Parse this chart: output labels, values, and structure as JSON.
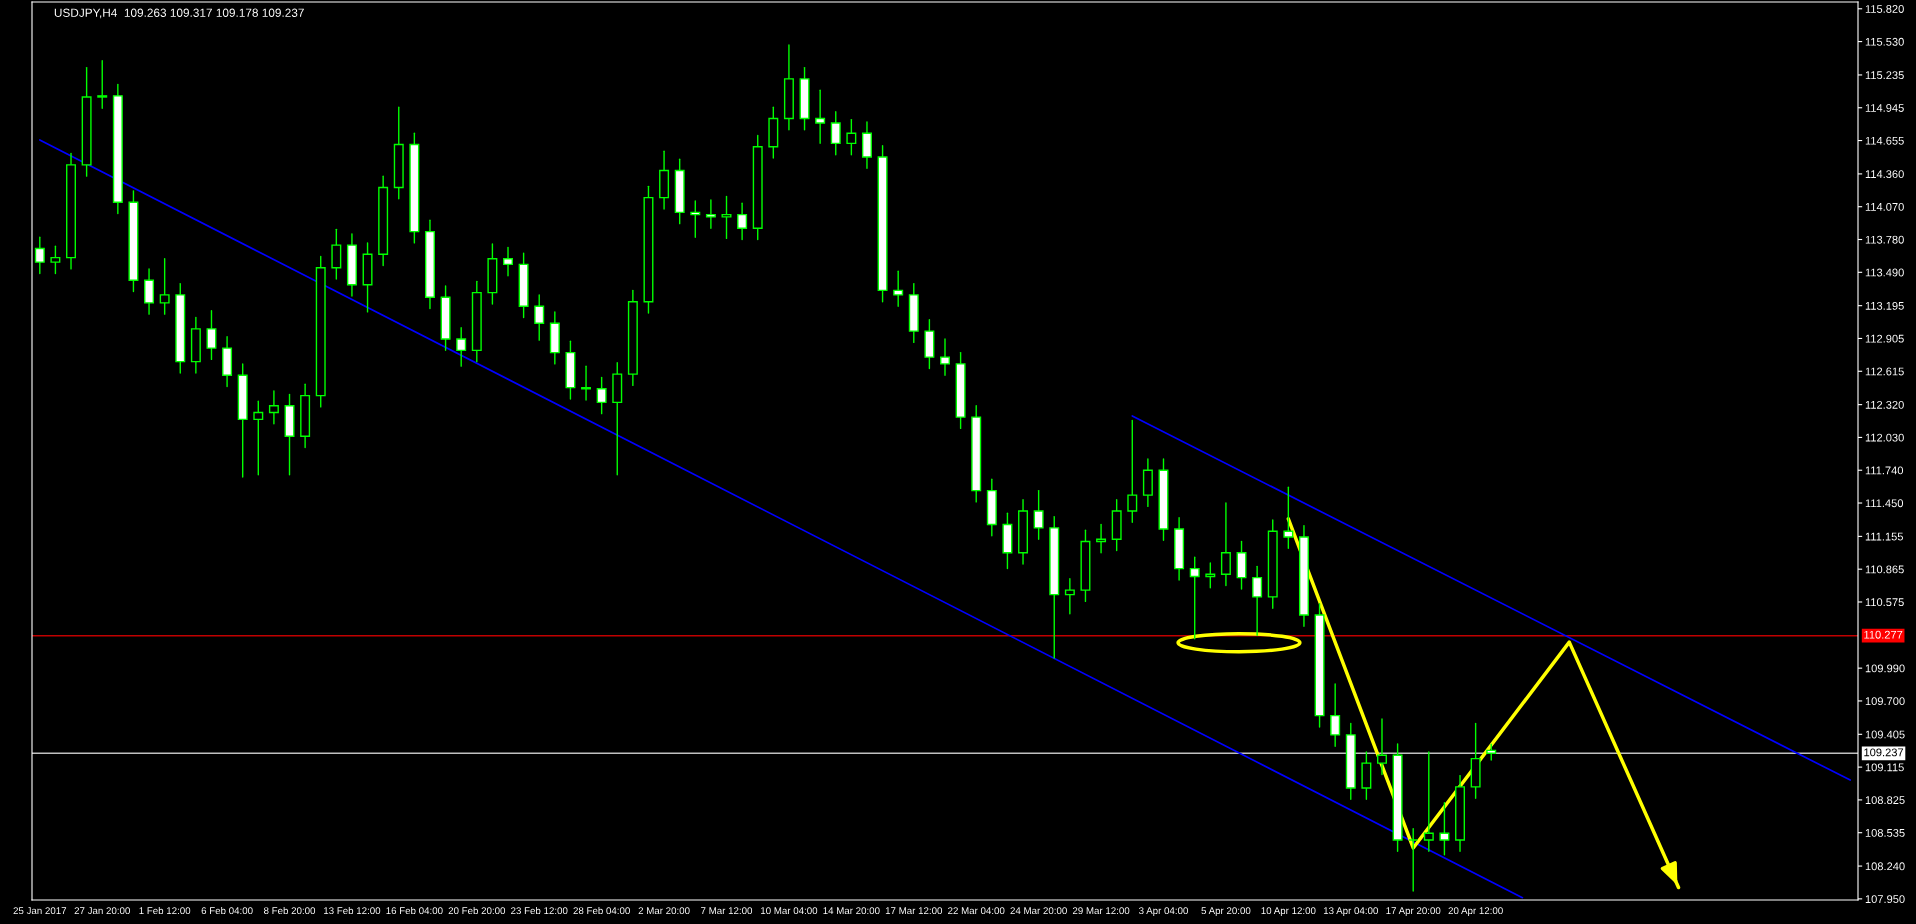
{
  "chart_data": {
    "type": "candlestick",
    "title": "USDJPY,H4  109.263 109.317 109.178 109.237",
    "color": "#00ff00",
    "categories": [
      "25 Jan 2017",
      null,
      null,
      null,
      "27 Jan 20:00",
      null,
      null,
      null,
      "1 Feb 12:00",
      null,
      null,
      null,
      "6 Feb 04:00",
      null,
      null,
      null,
      "8 Feb 20:00",
      null,
      null,
      null,
      "13 Feb 12:00",
      null,
      null,
      null,
      "16 Feb 04:00",
      null,
      null,
      null,
      "20 Feb 20:00",
      null,
      null,
      null,
      "23 Feb 12:00",
      null,
      null,
      null,
      "28 Feb 04:00",
      null,
      null,
      null,
      "2 Mar 20:00",
      null,
      null,
      null,
      "7 Mar 12:00",
      null,
      null,
      null,
      "10 Mar 04:00",
      null,
      null,
      null,
      "14 Mar 20:00",
      null,
      null,
      null,
      "17 Mar 12:00",
      null,
      null,
      null,
      "22 Mar 04:00",
      null,
      null,
      null,
      "24 Mar 20:00",
      null,
      null,
      null,
      "29 Mar 12:00",
      null,
      null,
      null,
      "3 Apr 04:00",
      null,
      null,
      null,
      "5 Apr 20:00",
      null,
      null,
      null,
      "10 Apr 12:00",
      null,
      null,
      null,
      "13 Apr 04:00",
      null,
      null,
      null,
      "17 Apr 20:00",
      null,
      null,
      null,
      "20 Apr 12:00",
      null,
      null,
      null,
      null,
      null,
      null,
      null,
      null,
      null,
      null,
      null,
      null,
      null,
      null,
      null,
      null,
      null,
      null,
      null,
      null,
      null,
      null,
      null,
      null
    ],
    "ohlc": [
      [
        113.7,
        113.8,
        113.48,
        113.58
      ],
      [
        113.58,
        113.72,
        113.48,
        113.62
      ],
      [
        113.62,
        114.54,
        113.52,
        114.44
      ],
      [
        114.44,
        115.3,
        114.34,
        115.04
      ],
      [
        115.04,
        115.36,
        114.94,
        115.05
      ],
      [
        115.05,
        115.15,
        114.01,
        114.11
      ],
      [
        114.11,
        114.21,
        113.32,
        113.42
      ],
      [
        113.42,
        113.52,
        113.12,
        113.22
      ],
      [
        113.22,
        113.61,
        113.12,
        113.29
      ],
      [
        113.29,
        113.39,
        112.6,
        112.7
      ],
      [
        112.7,
        113.09,
        112.6,
        112.99
      ],
      [
        112.99,
        113.15,
        112.72,
        112.82
      ],
      [
        112.82,
        112.92,
        112.48,
        112.58
      ],
      [
        112.58,
        112.68,
        111.68,
        112.19
      ],
      [
        112.19,
        112.35,
        111.7,
        112.25
      ],
      [
        112.25,
        112.44,
        112.15,
        112.31
      ],
      [
        112.31,
        112.41,
        111.7,
        112.04
      ],
      [
        112.04,
        112.5,
        111.94,
        112.4
      ],
      [
        112.4,
        113.63,
        112.3,
        113.53
      ],
      [
        113.53,
        113.87,
        113.43,
        113.73
      ],
      [
        113.73,
        113.83,
        113.28,
        113.38
      ],
      [
        113.38,
        113.75,
        113.14,
        113.65
      ],
      [
        113.65,
        114.34,
        113.55,
        114.24
      ],
      [
        114.24,
        114.95,
        114.14,
        114.62
      ],
      [
        114.62,
        114.72,
        113.75,
        113.85
      ],
      [
        113.85,
        113.95,
        113.17,
        113.27
      ],
      [
        113.27,
        113.37,
        112.8,
        112.9
      ],
      [
        112.9,
        113.0,
        112.66,
        112.8
      ],
      [
        112.8,
        113.41,
        112.7,
        113.31
      ],
      [
        113.31,
        113.74,
        113.21,
        113.61
      ],
      [
        113.61,
        113.71,
        113.46,
        113.56
      ],
      [
        113.56,
        113.66,
        113.09,
        113.19
      ],
      [
        113.19,
        113.29,
        112.89,
        113.04
      ],
      [
        113.04,
        113.14,
        112.68,
        112.78
      ],
      [
        112.78,
        112.88,
        112.37,
        112.47
      ],
      [
        112.47,
        112.66,
        112.36,
        112.46
      ],
      [
        112.46,
        112.56,
        112.24,
        112.34
      ],
      [
        112.34,
        112.69,
        111.7,
        112.59
      ],
      [
        112.59,
        113.33,
        112.49,
        113.23
      ],
      [
        113.23,
        114.25,
        113.13,
        114.15
      ],
      [
        114.15,
        114.56,
        114.05,
        114.39
      ],
      [
        114.39,
        114.49,
        113.92,
        114.02
      ],
      [
        114.02,
        114.12,
        113.8,
        114.0
      ],
      [
        114.0,
        114.13,
        113.88,
        113.98
      ],
      [
        113.98,
        114.16,
        113.79,
        114.0
      ],
      [
        114.0,
        114.1,
        113.78,
        113.88
      ],
      [
        113.88,
        114.7,
        113.78,
        114.6
      ],
      [
        114.6,
        114.95,
        114.5,
        114.85
      ],
      [
        114.85,
        115.5,
        114.75,
        115.2
      ],
      [
        115.2,
        115.3,
        114.75,
        114.85
      ],
      [
        114.85,
        115.1,
        114.63,
        114.81
      ],
      [
        114.81,
        114.91,
        114.53,
        114.63
      ],
      [
        114.63,
        114.84,
        114.53,
        114.72
      ],
      [
        114.72,
        114.82,
        114.41,
        114.51
      ],
      [
        114.51,
        114.61,
        113.23,
        113.33
      ],
      [
        113.33,
        113.5,
        113.19,
        113.29
      ],
      [
        113.29,
        113.39,
        112.87,
        112.97
      ],
      [
        112.97,
        113.07,
        112.64,
        112.74
      ],
      [
        112.74,
        112.9,
        112.58,
        112.68
      ],
      [
        112.68,
        112.78,
        112.11,
        112.21
      ],
      [
        112.21,
        112.31,
        111.46,
        111.56
      ],
      [
        111.56,
        111.66,
        111.16,
        111.26
      ],
      [
        111.26,
        111.36,
        110.87,
        111.01
      ],
      [
        111.01,
        111.48,
        110.91,
        111.38
      ],
      [
        111.38,
        111.56,
        111.13,
        111.23
      ],
      [
        111.23,
        111.33,
        110.08,
        110.64
      ],
      [
        110.64,
        110.78,
        110.47,
        110.68
      ],
      [
        110.68,
        111.21,
        110.58,
        111.11
      ],
      [
        111.11,
        111.26,
        111.01,
        111.13
      ],
      [
        111.13,
        111.48,
        111.03,
        111.38
      ],
      [
        111.38,
        112.18,
        111.28,
        111.52
      ],
      [
        111.52,
        111.84,
        111.42,
        111.74
      ],
      [
        111.74,
        111.84,
        111.12,
        111.22
      ],
      [
        111.22,
        111.32,
        110.77,
        110.87
      ],
      [
        110.87,
        110.97,
        110.25,
        110.8
      ],
      [
        110.8,
        110.92,
        110.7,
        110.82
      ],
      [
        110.82,
        111.45,
        110.72,
        111.01
      ],
      [
        111.01,
        111.11,
        110.69,
        110.79
      ],
      [
        110.79,
        110.89,
        110.28,
        110.62
      ],
      [
        110.62,
        111.3,
        110.52,
        111.2
      ],
      [
        111.2,
        111.59,
        111.05,
        111.15
      ],
      [
        111.15,
        111.25,
        110.36,
        110.46
      ],
      [
        110.46,
        110.56,
        109.47,
        109.57
      ],
      [
        109.57,
        109.85,
        109.3,
        109.4
      ],
      [
        109.4,
        109.5,
        108.83,
        108.93
      ],
      [
        108.93,
        109.25,
        108.83,
        109.15
      ],
      [
        109.15,
        109.54,
        109.05,
        109.22
      ],
      [
        109.22,
        109.32,
        108.37,
        108.47
      ],
      [
        108.47,
        108.57,
        108.02,
        108.47
      ],
      [
        108.47,
        109.25,
        108.37,
        108.53
      ],
      [
        108.53,
        108.8,
        108.34,
        108.47
      ],
      [
        108.47,
        109.04,
        108.37,
        108.94
      ],
      [
        108.94,
        109.5,
        108.84,
        109.19
      ],
      [
        109.263,
        109.317,
        109.178,
        109.237
      ],
      null,
      null,
      null,
      null,
      null,
      null,
      null,
      null,
      null,
      null,
      null,
      null,
      null,
      null,
      null,
      null,
      null,
      null,
      null,
      null,
      null,
      null,
      null
    ],
    "series": [
      {
        "type": "line",
        "color": "#0000ff",
        "values": [
          114.66,
          null,
          null,
          null,
          null,
          null,
          null,
          null,
          null,
          null,
          null,
          null,
          null,
          null,
          null,
          null,
          null,
          null,
          null,
          null,
          null,
          null,
          null,
          null,
          null,
          null,
          null,
          null,
          null,
          null,
          null,
          null,
          null,
          null,
          null,
          null,
          null,
          null,
          null,
          null,
          null,
          null,
          null,
          null,
          null,
          null,
          null,
          null,
          null,
          null,
          null,
          null,
          null,
          null,
          null,
          null,
          null,
          null,
          null,
          null,
          null,
          null,
          null,
          null,
          null,
          null,
          null,
          null,
          null,
          null,
          null,
          null,
          null,
          null,
          null,
          null,
          null,
          null,
          null,
          null,
          null,
          null,
          null,
          null,
          null,
          null,
          null,
          null,
          null,
          null,
          null,
          null,
          null,
          null,
          null,
          107.96,
          null,
          null,
          null,
          null,
          null,
          null,
          null,
          null,
          null,
          null,
          null,
          null,
          null,
          null,
          null,
          null,
          null,
          null,
          null,
          null,
          null
        ]
      },
      {
        "type": "line",
        "color": "#0000ff",
        "values": [
          null,
          null,
          null,
          null,
          null,
          null,
          null,
          null,
          null,
          null,
          null,
          null,
          null,
          null,
          null,
          null,
          null,
          null,
          null,
          null,
          null,
          null,
          null,
          null,
          null,
          null,
          null,
          null,
          null,
          null,
          null,
          null,
          null,
          null,
          null,
          null,
          null,
          null,
          null,
          null,
          null,
          null,
          null,
          null,
          null,
          null,
          null,
          null,
          null,
          null,
          null,
          null,
          null,
          null,
          null,
          null,
          null,
          null,
          null,
          null,
          null,
          null,
          null,
          null,
          null,
          null,
          null,
          null,
          null,
          null,
          112.22,
          null,
          null,
          null,
          null,
          null,
          null,
          null,
          null,
          null,
          null,
          null,
          null,
          null,
          null,
          null,
          null,
          null,
          null,
          null,
          null,
          null,
          null,
          null,
          null,
          null,
          null,
          null,
          null,
          null,
          null,
          null,
          null,
          null,
          null,
          null,
          null,
          null,
          null,
          null,
          null,
          null,
          null,
          null,
          null,
          null,
          109.0
        ]
      },
      {
        "type": "line",
        "color": "#ffff00",
        "values": [
          null,
          null,
          null,
          null,
          null,
          null,
          null,
          null,
          null,
          null,
          null,
          null,
          null,
          null,
          null,
          null,
          null,
          null,
          null,
          null,
          null,
          null,
          null,
          null,
          null,
          null,
          null,
          null,
          null,
          null,
          null,
          null,
          null,
          null,
          null,
          null,
          null,
          null,
          null,
          null,
          null,
          null,
          null,
          null,
          null,
          null,
          null,
          null,
          null,
          null,
          null,
          null,
          null,
          null,
          null,
          null,
          null,
          null,
          null,
          null,
          null,
          null,
          null,
          null,
          null,
          null,
          null,
          null,
          null,
          null,
          null,
          null,
          null,
          null,
          null,
          null,
          null,
          null,
          null,
          null,
          111.31,
          null,
          null,
          null,
          null,
          null,
          null,
          null,
          108.4,
          null,
          null,
          null,
          null,
          null,
          null,
          null,
          null,
          null,
          110.22,
          null,
          null,
          null,
          null,
          null,
          null,
          108.05,
          null,
          null,
          null,
          null,
          null,
          null,
          null,
          null,
          null,
          null,
          null
        ]
      }
    ],
    "ref_lines": [
      {
        "axis": "y",
        "value": 110.277,
        "label": "110.277",
        "color": "#c00000"
      },
      {
        "axis": "y",
        "value": 109.237,
        "label": "109.237",
        "color": "#c0c0c0"
      }
    ],
    "ylim": [
      107.94,
      115.88
    ],
    "yticks": [
      {
        "value": 115.82,
        "label": "115.820"
      },
      {
        "value": 115.53,
        "label": "115.530"
      },
      {
        "value": 115.235,
        "label": "115.235"
      },
      {
        "value": 114.945,
        "label": "114.945"
      },
      {
        "value": 114.655,
        "label": "114.655"
      },
      {
        "value": 114.36,
        "label": "114.360"
      },
      {
        "value": 114.07,
        "label": "114.070"
      },
      {
        "value": 113.78,
        "label": "113.780"
      },
      {
        "value": 113.49,
        "label": "113.490"
      },
      {
        "value": 113.195,
        "label": "113.195"
      },
      {
        "value": 112.905,
        "label": "112.905"
      },
      {
        "value": 112.615,
        "label": "112.615"
      },
      {
        "value": 112.32,
        "label": "112.320"
      },
      {
        "value": 112.03,
        "label": "112.030"
      },
      {
        "value": 111.74,
        "label": "111.740"
      },
      {
        "value": 111.45,
        "label": "111.450"
      },
      {
        "value": 111.155,
        "label": "111.155"
      },
      {
        "value": 110.865,
        "label": "110.865"
      },
      {
        "value": 110.575,
        "label": "110.575"
      },
      {
        "value": 109.99,
        "label": "109.990"
      },
      {
        "value": 109.7,
        "label": "109.700"
      },
      {
        "value": 109.405,
        "label": "109.405"
      },
      {
        "value": 109.115,
        "label": "109.115"
      },
      {
        "value": 108.825,
        "label": "108.825"
      },
      {
        "value": 108.535,
        "label": "108.535"
      },
      {
        "value": 108.24,
        "label": "108.240"
      },
      {
        "value": 107.95,
        "label": "107.950"
      }
    ],
    "grid": false,
    "legend": false
  }
}
